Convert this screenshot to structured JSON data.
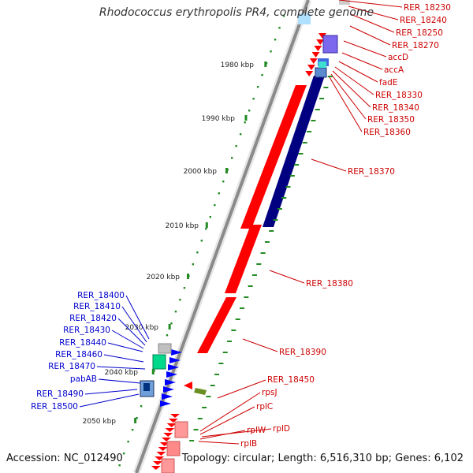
{
  "title": "Rhodococcus erythropolis PR4, complete genome",
  "footer": {
    "accession": "Accession: NC_012490",
    "summary": "Topology: circular; Length: 6,516,310 bp; Genes: 6,102"
  },
  "colors": {
    "forward_gene": "#ff0000",
    "reverse_gene": "#000080",
    "label_forward": "#cc0000",
    "label_reverse": "#0000cc",
    "scale_dots": "#228b22",
    "backbone": "#888888"
  },
  "scale_ticks": [
    {
      "label": "1980 kbp"
    },
    {
      "label": "1990 kbp"
    },
    {
      "label": "2000 kbp"
    },
    {
      "label": "2010 kbp"
    },
    {
      "label": "2020 kbp"
    },
    {
      "label": "2030 kbp"
    },
    {
      "label": "2040 kbp"
    },
    {
      "label": "2050 kbp"
    }
  ],
  "right_labels": [
    "RER_18230",
    "RER_18240",
    "RER_18250",
    "RER_18270",
    "accD",
    "accA",
    "fadE",
    "RER_18330",
    "RER_18340",
    "RER_18350",
    "RER_18360",
    "RER_18370",
    "RER_18380",
    "RER_18390"
  ],
  "left_labels": [
    "RER_18400",
    "RER_18410",
    "RER_18420",
    "RER_18430",
    "RER_18440",
    "RER_18460",
    "RER_18470",
    "pabAB",
    "RER_18490",
    "RER_18500"
  ],
  "bottom_labels": [
    "RER_18450",
    "rpsJ",
    "rplC",
    "rplD",
    "rplW",
    "rplB"
  ]
}
